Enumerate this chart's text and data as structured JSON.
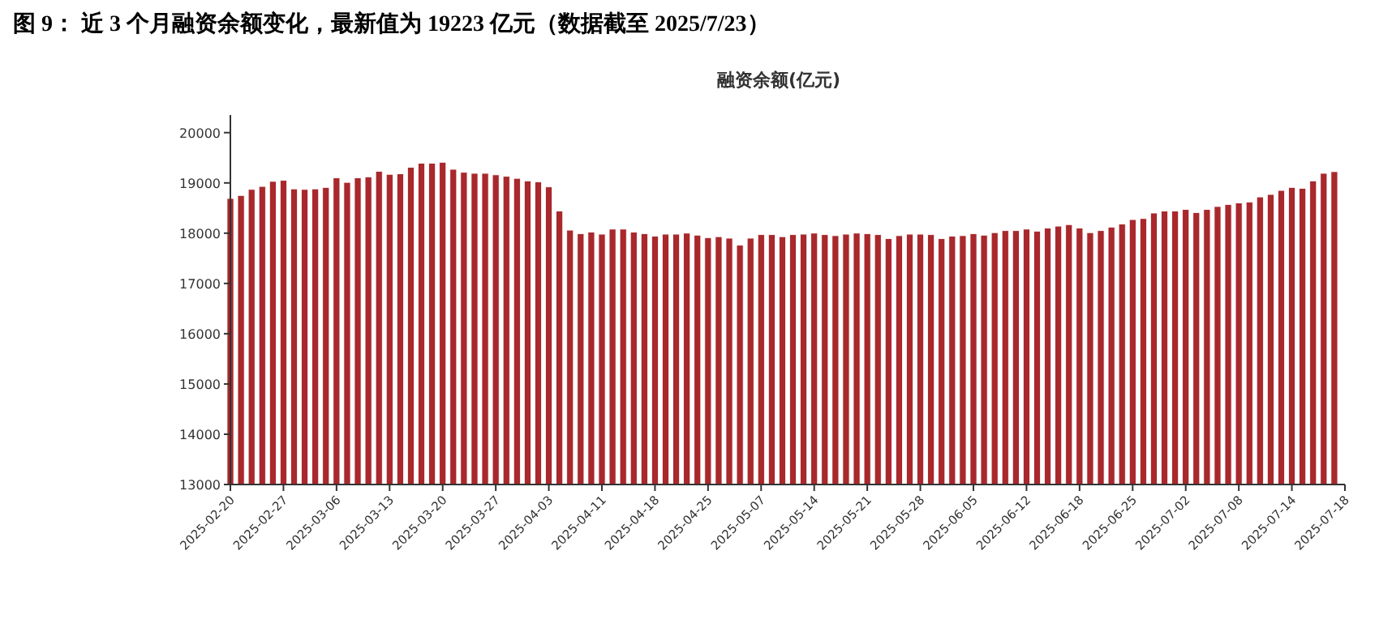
{
  "chart_data": {
    "type": "bar",
    "title": "图 9：  近 3 个月融资余额变化，最新值为 19223 亿元（数据截至 2025/7/23）",
    "subtitle": "融资余额(亿元)",
    "categories": [
      "2025-02-20",
      null,
      null,
      null,
      null,
      "2025-02-27",
      null,
      null,
      null,
      null,
      "2025-03-06",
      null,
      null,
      null,
      null,
      "2025-03-13",
      null,
      null,
      null,
      null,
      "2025-03-20",
      null,
      null,
      null,
      null,
      "2025-03-27",
      null,
      null,
      null,
      null,
      "2025-04-03",
      null,
      null,
      null,
      null,
      "2025-04-11",
      null,
      null,
      null,
      null,
      "2025-04-18",
      null,
      null,
      null,
      null,
      "2025-04-25",
      null,
      null,
      null,
      null,
      "2025-05-07",
      null,
      null,
      null,
      null,
      "2025-05-14",
      null,
      null,
      null,
      null,
      "2025-05-21",
      null,
      null,
      null,
      null,
      "2025-05-28",
      null,
      null,
      null,
      null,
      "2025-06-05",
      null,
      null,
      null,
      null,
      "2025-06-12",
      null,
      null,
      null,
      null,
      "2025-06-18",
      null,
      null,
      null,
      null,
      "2025-06-25",
      null,
      null,
      null,
      null,
      "2025-07-02",
      null,
      null,
      null,
      null,
      "2025-07-08",
      null,
      null,
      null,
      null,
      "2025-07-14",
      null,
      null,
      null,
      null,
      "2025-07-18"
    ],
    "values": [
      18690,
      18750,
      18870,
      18930,
      19030,
      19050,
      18880,
      18870,
      18880,
      18910,
      19100,
      19010,
      19100,
      19120,
      19230,
      19170,
      19180,
      19310,
      19390,
      19390,
      19410,
      19270,
      19210,
      19190,
      19190,
      19160,
      19130,
      19090,
      19040,
      19020,
      18920,
      18440,
      18060,
      17990,
      18020,
      17980,
      18080,
      18080,
      18020,
      17990,
      17940,
      17980,
      17980,
      18000,
      17960,
      17910,
      17930,
      17900,
      17760,
      17900,
      17970,
      17970,
      17930,
      17970,
      17980,
      18000,
      17970,
      17950,
      17980,
      18000,
      17990,
      17970,
      17890,
      17950,
      17980,
      17980,
      17970,
      17890,
      17940,
      17950,
      17990,
      17960,
      18010,
      18050,
      18050,
      18080,
      18040,
      18100,
      18140,
      18170,
      18100,
      18010,
      18050,
      18120,
      18180,
      18270,
      18290,
      18400,
      18440,
      18440,
      18470,
      18410,
      18470,
      18530,
      18570,
      18600,
      18620,
      18720,
      18770,
      18850,
      18910,
      18890,
      19040,
      19190,
      19223,
      null
    ],
    "color": "#a8282c",
    "ylim": [
      13000,
      20350
    ],
    "yticks": [
      13000,
      14000,
      15000,
      16000,
      17000,
      18000,
      19000,
      20000
    ],
    "grid": false
  }
}
